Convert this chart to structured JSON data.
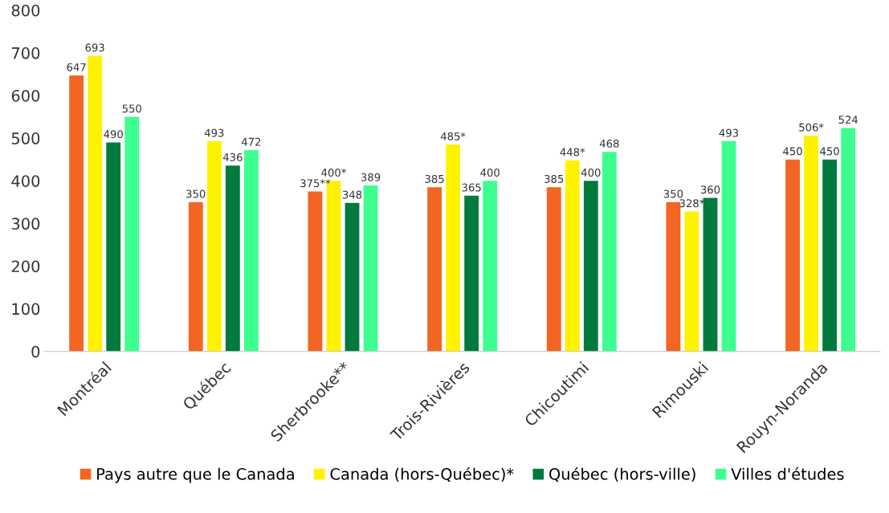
{
  "chart_data": {
    "type": "bar",
    "categories": [
      "Montréal",
      "Québec",
      "Sherbrooke**",
      "Trois-Rivières",
      "Chicoutimi",
      "Rimouski",
      "Rouyn-Noranda"
    ],
    "series": [
      {
        "name": "Pays autre que le Canada",
        "color": "#f26522",
        "values": [
          647,
          350,
          375,
          385,
          385,
          350,
          450
        ],
        "value_labels": [
          "647",
          "350",
          "375**",
          "385",
          "385",
          "350",
          "450"
        ]
      },
      {
        "name": "Canada (hors-Québec)*",
        "color": "#fff200",
        "values": [
          693,
          493,
          400,
          485,
          448,
          328,
          506
        ],
        "value_labels": [
          "693",
          "493",
          "400*",
          "485*",
          "448*",
          "328*",
          "506*"
        ]
      },
      {
        "name": "Québec (hors-ville)",
        "color": "#007a3d",
        "values": [
          490,
          436,
          348,
          365,
          400,
          360,
          450
        ],
        "value_labels": [
          "490",
          "436",
          "348",
          "365",
          "400",
          "360",
          "450"
        ]
      },
      {
        "name": "Villes d'études",
        "color": "#3dff8f",
        "values": [
          550,
          472,
          389,
          400,
          468,
          493,
          524
        ],
        "value_labels": [
          "550",
          "472",
          "389",
          "400",
          "468",
          "493",
          "524"
        ]
      }
    ],
    "ylim": [
      0,
      800
    ],
    "yticks": [
      0,
      100,
      200,
      300,
      400,
      500,
      600,
      700,
      800
    ],
    "grid": false,
    "legend": "bottom"
  }
}
